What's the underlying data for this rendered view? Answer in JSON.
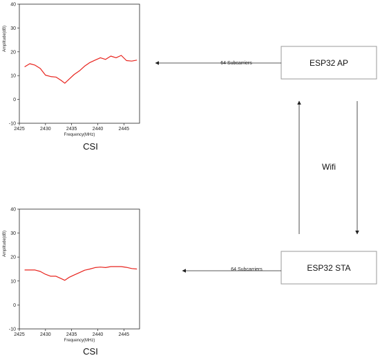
{
  "nodes": {
    "ap": "ESP32 AP",
    "sta": "ESP32 STA"
  },
  "edges": {
    "ap_to_chart": "64 Subcarriers",
    "sta_to_chart": "64 Subcarriers",
    "wifi": "Wifi"
  },
  "captions": {
    "top": "CSI",
    "bottom": "CSI"
  },
  "colors": {
    "series": "#e8231d",
    "box_border": "#9a9a9a",
    "arrow": "#222222"
  },
  "chart_data": [
    {
      "type": "line",
      "xlabel": "Frequency(MHz)",
      "ylabel": "Amplitude(dB)",
      "xlim": [
        2425,
        2448
      ],
      "ylim": [
        -10,
        40
      ],
      "xticks": [
        "2425",
        "2430",
        "2435",
        "2440",
        "2445"
      ],
      "yticks": [
        "-10",
        "0",
        "10",
        "20",
        "30",
        "40"
      ],
      "x": [
        2426,
        2427,
        2428,
        2429,
        2430,
        2431,
        2432,
        2433,
        2433.7,
        2434.5,
        2435.5,
        2436.5,
        2437.5,
        2438.5,
        2439.5,
        2440.5,
        2441.5,
        2442.5,
        2443.5,
        2444.5,
        2445.5,
        2446.5,
        2447.5
      ],
      "series": [
        {
          "values": [
            13.7,
            15.0,
            14.4,
            13.0,
            10.2,
            9.6,
            9.4,
            8.0,
            6.8,
            8.5,
            10.5,
            12.0,
            14.0,
            15.5,
            16.5,
            17.5,
            16.8,
            18.2,
            17.5,
            18.5,
            16.3,
            16.1,
            16.5
          ]
        }
      ]
    },
    {
      "type": "line",
      "xlabel": "Frequency(MHz)",
      "ylabel": "Amplitude(dB)",
      "xlim": [
        2425,
        2448
      ],
      "ylim": [
        -10,
        40
      ],
      "xticks": [
        "2425",
        "2430",
        "2435",
        "2440",
        "2445"
      ],
      "yticks": [
        "-10",
        "0",
        "10",
        "20",
        "30",
        "40"
      ],
      "x": [
        2426,
        2427,
        2428,
        2429,
        2430,
        2431,
        2432,
        2433,
        2433.7,
        2434.5,
        2435.5,
        2436.5,
        2437.5,
        2438.5,
        2439.5,
        2440.5,
        2441.5,
        2442.5,
        2443.5,
        2444.5,
        2445.5,
        2446.5,
        2447.5
      ],
      "series": [
        {
          "values": [
            14.6,
            14.6,
            14.6,
            14.0,
            12.8,
            12.0,
            12.0,
            11.0,
            10.3,
            11.5,
            12.5,
            13.5,
            14.5,
            15.0,
            15.6,
            15.8,
            15.6,
            16.0,
            16.0,
            16.0,
            15.7,
            15.2,
            15.0
          ]
        }
      ]
    }
  ]
}
